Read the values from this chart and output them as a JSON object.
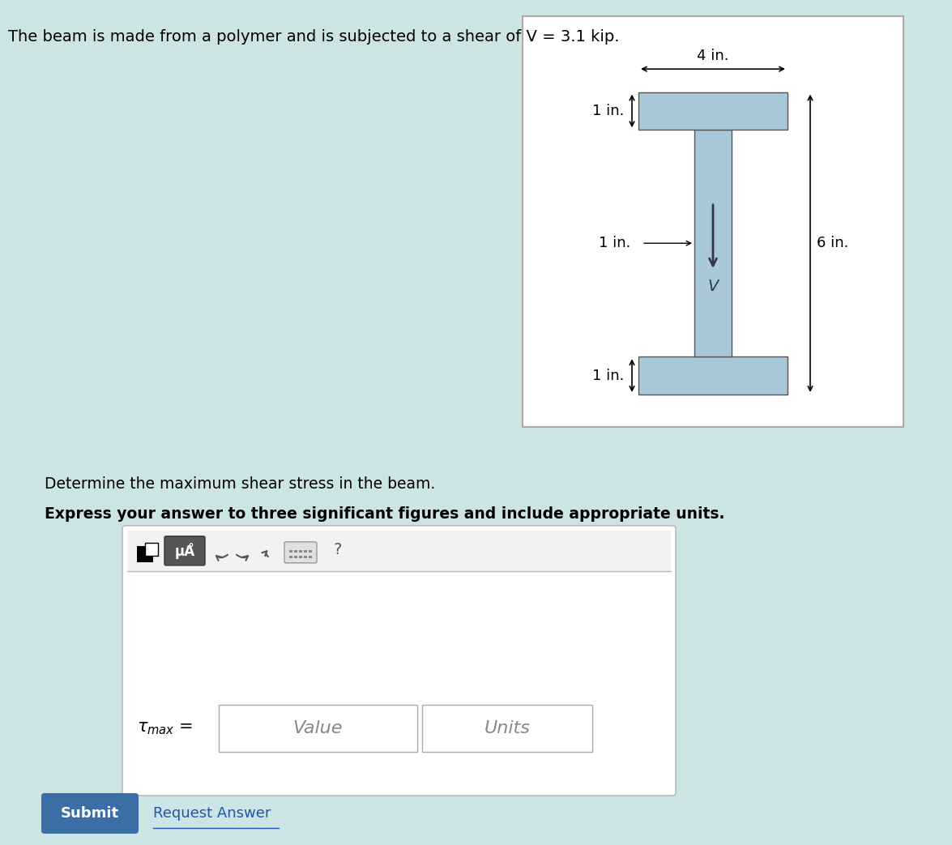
{
  "title_text": "The beam is made from a polymer and is subjected to a shear of V = 3.1 kip.",
  "top_bg_color": "#cde4e4",
  "bottom_bg_color": "#e8e8e8",
  "beam_fill_color": "#a8c8d8",
  "beam_stroke_color": "#555555",
  "dim_4in_text": "4 in.",
  "dim_1in_top_text": "1 in.",
  "dim_1in_web_text": "1 in.",
  "dim_6in_text": "6 in.",
  "dim_1in_bot_text": "1 in.",
  "shear_label": "V",
  "question_line1": "Determine the maximum shear stress in the beam.",
  "question_line2": "Express your answer to three significant figures and include appropriate units.",
  "value_placeholder": "Value",
  "units_placeholder": "Units",
  "submit_text": "Submit",
  "request_answer_text": "Request Answer",
  "submit_btn_color": "#3a6ea5",
  "divider_color": "#bbbbbb",
  "white_panel_color": "#ffffff"
}
